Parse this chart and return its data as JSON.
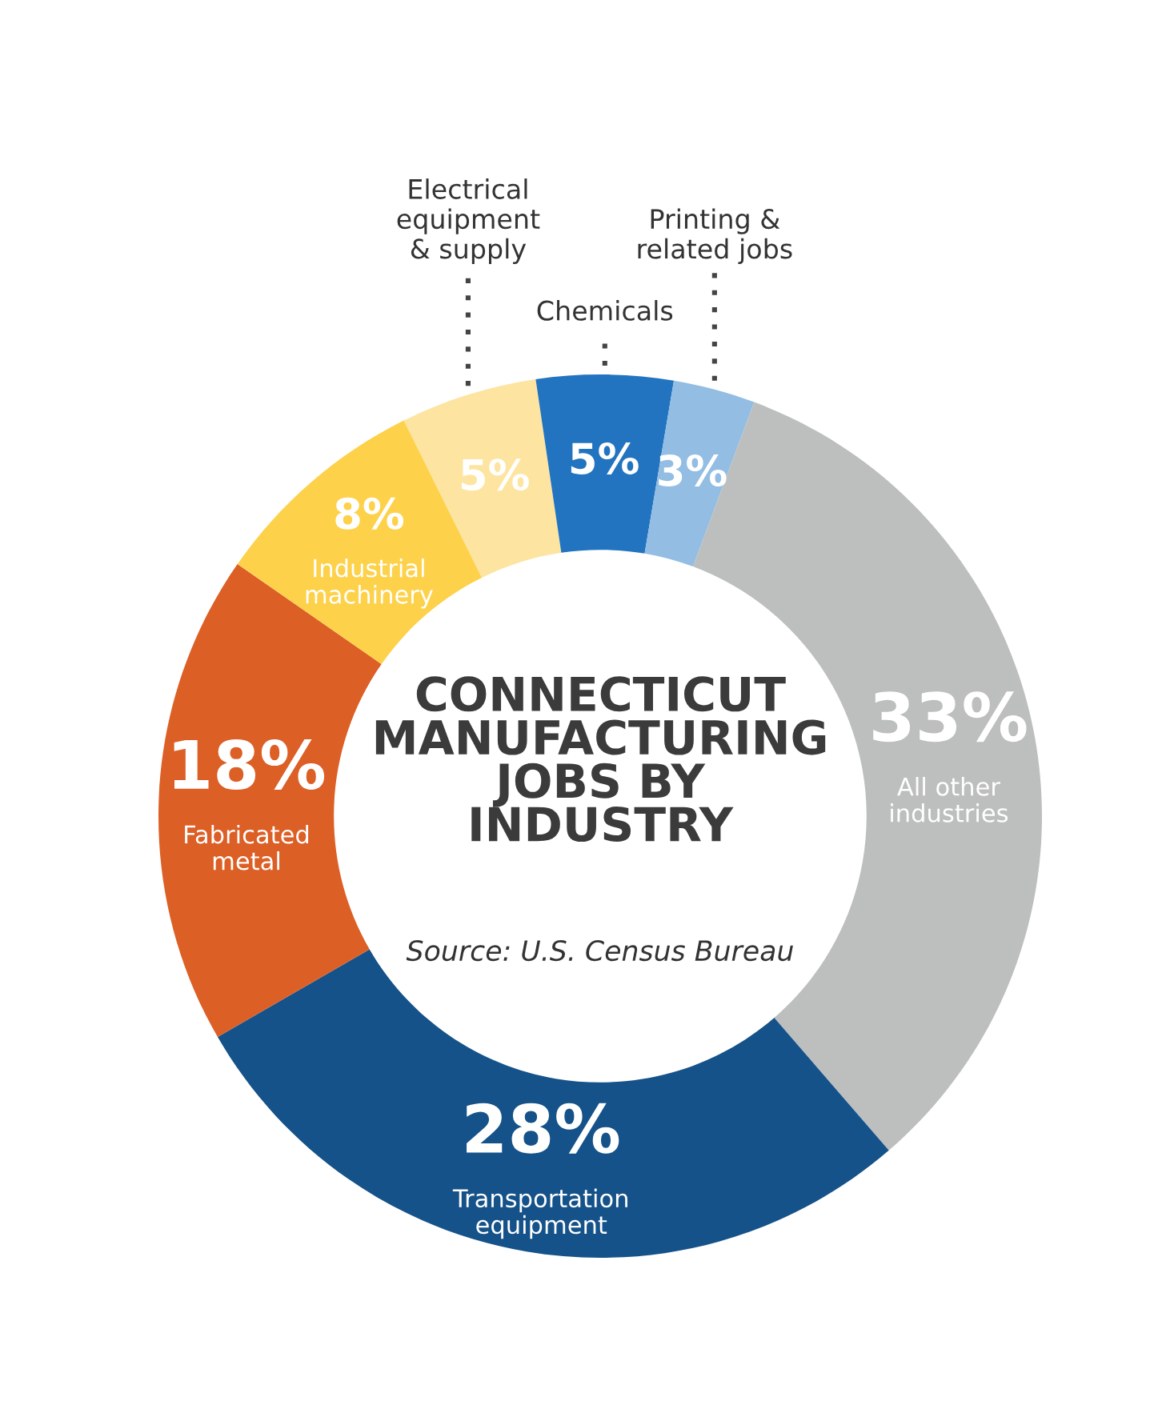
{
  "chart_data": {
    "type": "donut",
    "title": "CONNECTICUT\nMANUFACTURING\nJOBS BY\nINDUSTRY",
    "categories": [
      "Electrical\nequipment\n& supply",
      "Chemicals",
      "Printing &\nrelated jobs",
      "All other\nindustries",
      "Transportation\nequipment",
      "Fabricated\nmetal",
      "Industrial\nmachinery"
    ],
    "values": [
      5,
      5,
      3,
      33,
      28,
      18,
      8
    ],
    "value_labels": [
      "5%",
      "5%",
      "3%",
      "33%",
      "28%",
      "18%",
      "8%"
    ],
    "colors": [
      "#fde4a0",
      "#2274c0",
      "#93bde3",
      "#bdbfbe",
      "#155289",
      "#dc5f26",
      "#fdd14a"
    ],
    "annotations": [
      "Source: U.S. Census Bureau"
    ],
    "legend": false
  }
}
